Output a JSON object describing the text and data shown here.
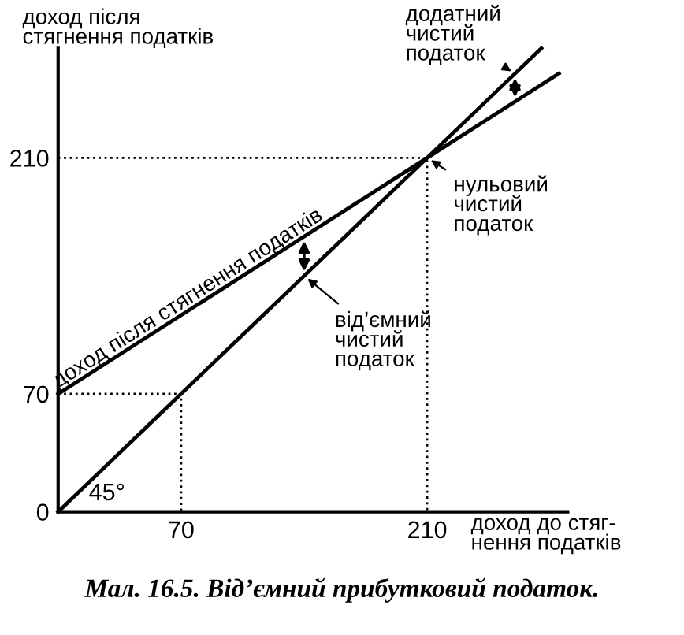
{
  "chart_data": {
    "type": "line",
    "title": "Мал. 16.5. Від’ємний прибутковий податок.",
    "xlabel": "доход до стяг-\nнення податків",
    "ylabel": "доход після\nстягнення податків",
    "xlim": [
      0,
      290
    ],
    "ylim": [
      0,
      275
    ],
    "xticks": [
      70,
      210
    ],
    "yticks": [
      0,
      70,
      210
    ],
    "grid": false,
    "legend": false,
    "marker": "none",
    "series": [
      {
        "color": "#000000",
        "x": [
          0,
          275
        ],
        "values": [
          0,
          275
        ],
        "line_style": "solid"
      },
      {
        "name": "доход після стягнення податків",
        "color": "#000000",
        "x": [
          0,
          285
        ],
        "values": [
          70,
          260
        ],
        "line_style": "solid"
      },
      {
        "color": "#000000",
        "x": [
          0,
          210,
          210
        ],
        "values": [
          210,
          210,
          0
        ],
        "line_style": "dotted"
      },
      {
        "color": "#000000",
        "x": [
          0,
          70,
          70
        ],
        "values": [
          70,
          70,
          0
        ],
        "line_style": "dotted"
      }
    ],
    "annotations": [
      {
        "text": "від’ємний\nчистий\nподаток",
        "x": 140,
        "y": 140
      },
      {
        "text": "додатний\nчистий\nподаток",
        "x": 260,
        "y": 260
      },
      {
        "text": "нульовий\nчистий\nподаток",
        "x": 210,
        "y": 210
      },
      {
        "text": "45°",
        "x": 0,
        "y": 0
      }
    ]
  }
}
